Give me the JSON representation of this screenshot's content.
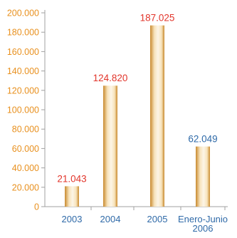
{
  "chart_data": {
    "type": "bar",
    "categories": [
      {
        "line1": "2003",
        "line2": ""
      },
      {
        "line1": "2004",
        "line2": ""
      },
      {
        "line1": "2005",
        "line2": ""
      },
      {
        "line1": "Enero-Junio",
        "line2": "2006"
      }
    ],
    "values": [
      21043,
      124820,
      187025,
      62049
    ],
    "data_labels": [
      "21.043",
      "124.820",
      "187.025",
      "62.049"
    ],
    "ylim": [
      0,
      200000
    ],
    "y_ticks": [
      {
        "value": 0,
        "label": "0"
      },
      {
        "value": 20000,
        "label": "20.000"
      },
      {
        "value": 40000,
        "label": "40.000"
      },
      {
        "value": 60000,
        "label": "60.000"
      },
      {
        "value": 80000,
        "label": "80.000"
      },
      {
        "value": 100000,
        "label": "100.000"
      },
      {
        "value": 120000,
        "label": "120.000"
      },
      {
        "value": 140000,
        "label": "140.000"
      },
      {
        "value": 160000,
        "label": "160.000"
      },
      {
        "value": 180000,
        "label": "180.000"
      },
      {
        "value": 200000,
        "label": "200.000"
      }
    ],
    "grid": false,
    "colors": {
      "axis_line": "#a0a0a0",
      "y_tick_label": "#e8901e",
      "x_tick_label": "#2f6aa8",
      "label_highlight": "#e2352b",
      "label_normal": "#2f6aa8",
      "bar_edge": "#c98a2e",
      "bar_mid": "#f7e3bc",
      "bar_light": "#fdf5e6"
    },
    "label_colors": [
      "highlight",
      "highlight",
      "highlight",
      "normal"
    ]
  }
}
